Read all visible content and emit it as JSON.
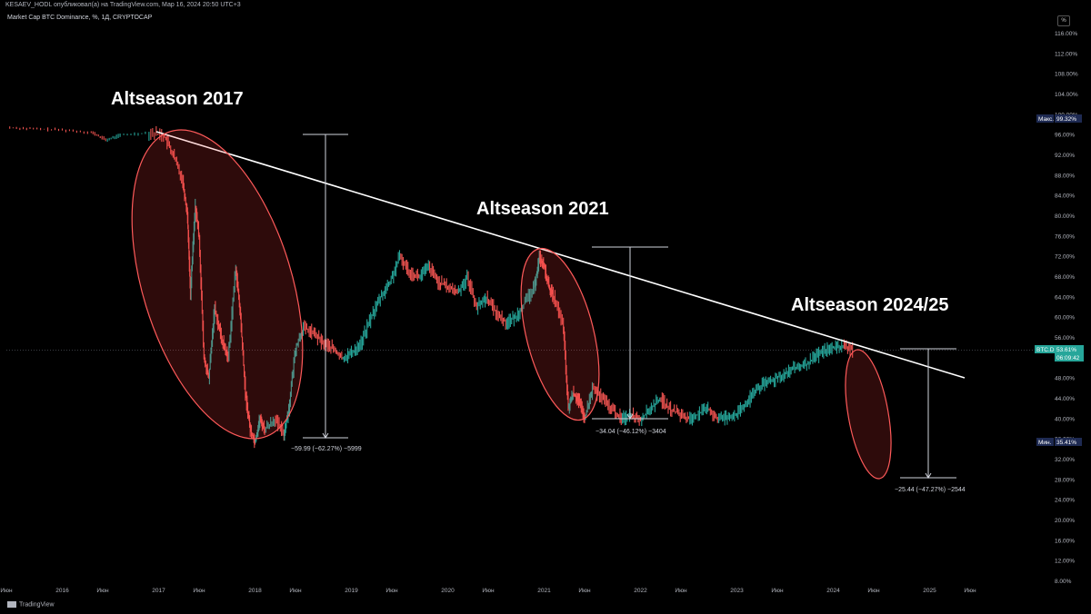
{
  "header": {
    "publish_line": "KESAEV_HODL опубликовал(а) на TradingView.com, Мар 16, 2024 20:50 UTC+3",
    "symbol_line": "Market Cap BTC Dominance, %, 1Д, CRYPTOCAP",
    "currency_button": "%"
  },
  "footer": {
    "brand": "TradingView"
  },
  "colors": {
    "background": "#000000",
    "up_candle": "#26a69a",
    "down_candle": "#ef5350",
    "trendline": "#ffffff",
    "ellipse": "#ff5a5a",
    "last_price_badge": "#26a69a",
    "max_min_badge": "#1e2a52"
  },
  "chart_data": {
    "type": "line",
    "title": "Market Cap BTC Dominance, %, 1Д, CRYPTOCAP",
    "xlabel": "",
    "ylabel": "",
    "ylim": [
      6,
      118
    ],
    "grid": false,
    "y_ticks": [
      "8.00%",
      "12.00%",
      "16.00%",
      "20.00%",
      "24.00%",
      "28.00%",
      "32.00%",
      "36.00%",
      "40.00%",
      "44.00%",
      "48.00%",
      "52.00%",
      "56.00%",
      "60.00%",
      "64.00%",
      "68.00%",
      "72.00%",
      "76.00%",
      "80.00%",
      "84.00%",
      "88.00%",
      "92.00%",
      "96.00%",
      "100.00%",
      "104.00%",
      "108.00%",
      "112.00%",
      "116.00%"
    ],
    "y_tick_values": [
      8,
      12,
      16,
      20,
      24,
      28,
      32,
      36,
      40,
      44,
      48,
      52,
      56,
      60,
      64,
      68,
      72,
      76,
      80,
      84,
      88,
      92,
      96,
      100,
      104,
      108,
      112,
      116
    ],
    "x_ticks": [
      {
        "label": "Июн",
        "x": 2015.42
      },
      {
        "label": "2016",
        "x": 2016.0
      },
      {
        "label": "Июн",
        "x": 2016.42
      },
      {
        "label": "2017",
        "x": 2017.0
      },
      {
        "label": "Июн",
        "x": 2017.42
      },
      {
        "label": "2018",
        "x": 2018.0
      },
      {
        "label": "Июн",
        "x": 2018.42
      },
      {
        "label": "2019",
        "x": 2019.0
      },
      {
        "label": "Июн",
        "x": 2019.42
      },
      {
        "label": "2020",
        "x": 2020.0
      },
      {
        "label": "Июн",
        "x": 2020.42
      },
      {
        "label": "2021",
        "x": 2021.0
      },
      {
        "label": "Июн",
        "x": 2021.42
      },
      {
        "label": "2022",
        "x": 2022.0
      },
      {
        "label": "Июн",
        "x": 2022.42
      },
      {
        "label": "2023",
        "x": 2023.0
      },
      {
        "label": "Июн",
        "x": 2023.42
      },
      {
        "label": "2024",
        "x": 2024.0
      },
      {
        "label": "Июн",
        "x": 2024.42
      },
      {
        "label": "2025",
        "x": 2025.0
      },
      {
        "label": "Июн",
        "x": 2025.42
      }
    ],
    "series": [
      {
        "x": [
          2015.42,
          2015.7,
          2016.0,
          2016.3,
          2016.45,
          2016.6,
          2016.9,
          2017.05,
          2017.15,
          2017.25,
          2017.3,
          2017.33,
          2017.38,
          2017.42,
          2017.47,
          2017.52,
          2017.58,
          2017.65,
          2017.72,
          2017.8,
          2017.85,
          2017.9,
          2017.95,
          2018.0,
          2018.05,
          2018.1,
          2018.2,
          2018.3,
          2018.35,
          2018.42,
          2018.5,
          2018.6,
          2018.7,
          2018.8,
          2018.9,
          2019.0,
          2019.1,
          2019.2,
          2019.3,
          2019.4,
          2019.5,
          2019.6,
          2019.7,
          2019.8,
          2019.9,
          2020.0,
          2020.1,
          2020.2,
          2020.3,
          2020.4,
          2020.5,
          2020.6,
          2020.7,
          2020.8,
          2020.9,
          2020.95,
          2021.0,
          2021.05,
          2021.1,
          2021.2,
          2021.25,
          2021.3,
          2021.35,
          2021.42,
          2021.5,
          2021.6,
          2021.7,
          2021.8,
          2021.9,
          2022.0,
          2022.1,
          2022.2,
          2022.3,
          2022.4,
          2022.5,
          2022.6,
          2022.7,
          2022.8,
          2022.9,
          2023.0,
          2023.1,
          2023.2,
          2023.3,
          2023.4,
          2023.5,
          2023.6,
          2023.7,
          2023.8,
          2023.9,
          2024.0,
          2024.1,
          2024.2
        ],
        "y": [
          97.5,
          97.2,
          97.0,
          96.5,
          95.0,
          96.0,
          96.5,
          96.0,
          92.0,
          87.0,
          80.0,
          65.0,
          82.0,
          76.0,
          52.0,
          48.0,
          62.0,
          56.0,
          52.0,
          70.0,
          60.0,
          45.0,
          38.0,
          35.5,
          40.0,
          38.0,
          40.0,
          37.0,
          42.0,
          54.0,
          58.0,
          57.0,
          55.0,
          54.0,
          52.0,
          53.0,
          55.0,
          60.0,
          64.0,
          67.0,
          72.0,
          69.0,
          68.0,
          70.0,
          67.0,
          66.0,
          65.0,
          68.0,
          62.0,
          64.0,
          61.0,
          59.0,
          60.0,
          63.0,
          66.0,
          72.0,
          70.0,
          66.0,
          64.0,
          58.0,
          42.0,
          45.0,
          44.0,
          40.0,
          46.0,
          44.0,
          42.0,
          40.0,
          41.0,
          40.0,
          42.0,
          44.0,
          42.0,
          41.0,
          40.0,
          41.0,
          42.0,
          40.0,
          40.5,
          41.0,
          43.0,
          46.0,
          47.0,
          48.0,
          49.0,
          50.0,
          50.5,
          52.0,
          53.5,
          54.0,
          54.5,
          53.6
        ]
      }
    ],
    "annotations": {
      "labels": [
        "Altseason 2017",
        "Altseason 2021",
        "Altseason 2024/25"
      ],
      "measures": [
        "−59.99 (−62.27%) −5999",
        "−34.04 (−46.12%) −3404",
        "−25.44 (−47.27%) −2544"
      ],
      "max_badge": {
        "label": "Макс.",
        "value": "99.32%"
      },
      "min_badge": {
        "label": "Мин.",
        "value": "35.41%"
      },
      "last_badge": {
        "label": "BTC.D",
        "value": "53.61%",
        "countdown": "06:09:42"
      }
    }
  }
}
